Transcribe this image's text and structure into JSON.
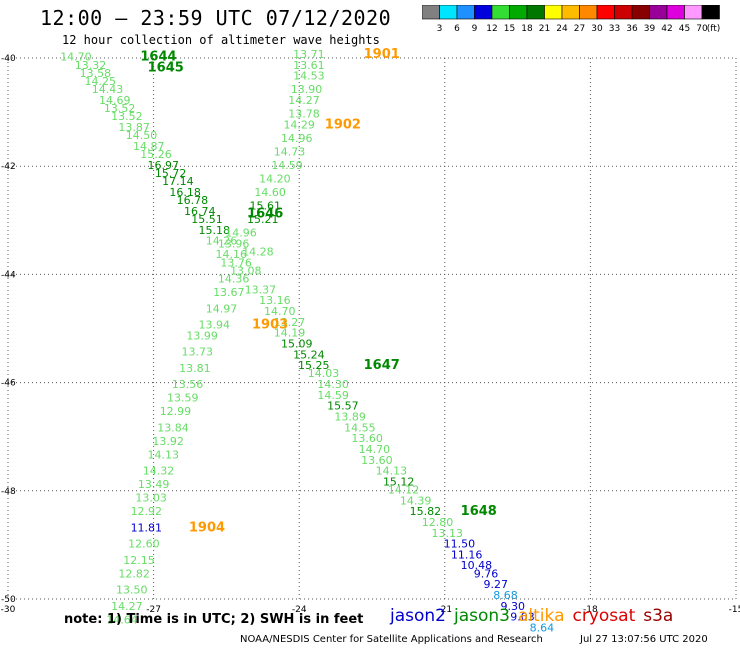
{
  "header": {
    "title": "12:00 – 23:59 UTC 07/12/2020",
    "subtitle": "12 hour collection of altimeter wave heights"
  },
  "legend": {
    "unit": "(ft)",
    "bins": [
      {
        "label": "3",
        "color": "#808080"
      },
      {
        "label": "6",
        "color": "#00e5ff"
      },
      {
        "label": "9",
        "color": "#1e90ff"
      },
      {
        "label": "12",
        "color": "#0000dd"
      },
      {
        "label": "15",
        "color": "#33dd33"
      },
      {
        "label": "18",
        "color": "#00aa00"
      },
      {
        "label": "21",
        "color": "#007700"
      },
      {
        "label": "24",
        "color": "#ffff00"
      },
      {
        "label": "27",
        "color": "#ffbb00"
      },
      {
        "label": "30",
        "color": "#ff8800"
      },
      {
        "label": "33",
        "color": "#ff0000"
      },
      {
        "label": "36",
        "color": "#cc0000"
      },
      {
        "label": "39",
        "color": "#880000"
      },
      {
        "label": "42",
        "color": "#990099"
      },
      {
        "label": "45",
        "color": "#dd00dd"
      },
      {
        "label": "70",
        "color": "#ff99ff"
      },
      {
        "label": "",
        "color": "#000000"
      }
    ]
  },
  "colors": {
    "light_green": "#66dd66",
    "dark_green": "#008800",
    "blue": "#0000cc",
    "light_blue": "#1199dd",
    "orange": "#ff9900",
    "red": "#dd0000",
    "dark_red": "#990000"
  },
  "chart_data": {
    "type": "scatter",
    "xlim": [
      -30,
      -15
    ],
    "ylim": [
      -50,
      -40
    ],
    "x_ticks": [
      "-30",
      "-27",
      "-24",
      "-21",
      "-18",
      "-15"
    ],
    "y_ticks": [
      "-40",
      "-42",
      "-44",
      "-46",
      "-48",
      "-50"
    ],
    "grid": true,
    "tracks": [
      {
        "satellite": "jason3",
        "points": [
          {
            "x": -28.6,
            "y": -40.05,
            "v": "14.70",
            "c": "light_green"
          },
          {
            "x": -28.3,
            "y": -40.2,
            "v": "13.32",
            "c": "light_green"
          },
          {
            "x": -28.2,
            "y": -40.35,
            "v": "13.58",
            "c": "light_green"
          },
          {
            "x": -28.1,
            "y": -40.5,
            "v": "14.25",
            "c": "light_green"
          },
          {
            "x": -27.95,
            "y": -40.65,
            "v": "14.43",
            "c": "light_green"
          },
          {
            "x": -27.8,
            "y": -40.85,
            "v": "14.69",
            "c": "light_green"
          },
          {
            "x": -27.7,
            "y": -41.0,
            "v": "13.52",
            "c": "light_green"
          },
          {
            "x": -27.55,
            "y": -41.15,
            "v": "13.52",
            "c": "light_green"
          },
          {
            "x": -27.4,
            "y": -41.35,
            "v": "13.87",
            "c": "light_green"
          },
          {
            "x": -27.25,
            "y": -41.5,
            "v": "14.50",
            "c": "light_green"
          },
          {
            "x": -27.1,
            "y": -41.7,
            "v": "14.87",
            "c": "light_green"
          },
          {
            "x": -26.95,
            "y": -41.85,
            "v": "15.26",
            "c": "light_green"
          },
          {
            "x": -26.8,
            "y": -42.05,
            "v": "16.97",
            "c": "dark_green"
          },
          {
            "x": -26.65,
            "y": -42.2,
            "v": "15.72",
            "c": "dark_green"
          },
          {
            "x": -26.5,
            "y": -42.35,
            "v": "17.14",
            "c": "dark_green"
          },
          {
            "x": -26.35,
            "y": -42.55,
            "v": "16.18",
            "c": "dark_green"
          },
          {
            "x": -26.2,
            "y": -42.7,
            "v": "16.78",
            "c": "dark_green"
          },
          {
            "x": -26.05,
            "y": -42.9,
            "v": "16.74",
            "c": "dark_green"
          },
          {
            "x": -25.9,
            "y": -43.05,
            "v": "15.51",
            "c": "dark_green"
          },
          {
            "x": -25.75,
            "y": -43.25,
            "v": "15.18",
            "c": "dark_green"
          },
          {
            "x": -25.6,
            "y": -43.45,
            "v": "14.26",
            "c": "light_green"
          },
          {
            "x": -25.4,
            "y": -43.7,
            "v": "14.16",
            "c": "light_green"
          },
          {
            "x": -25.3,
            "y": -43.85,
            "v": "13.76",
            "c": "light_green"
          },
          {
            "x": -25.1,
            "y": -44.0,
            "v": "13.08",
            "c": "light_green"
          },
          {
            "x": -24.8,
            "y": -44.35,
            "v": "13.37",
            "c": "light_green"
          },
          {
            "x": -24.5,
            "y": -44.55,
            "v": "13.16",
            "c": "light_green"
          },
          {
            "x": -24.4,
            "y": -44.75,
            "v": "14.70",
            "c": "light_green"
          },
          {
            "x": -24.2,
            "y": -44.95,
            "v": "13.27",
            "c": "light_green"
          },
          {
            "x": -24.2,
            "y": -45.15,
            "v": "14.19",
            "c": "light_green"
          },
          {
            "x": -24.05,
            "y": -45.35,
            "v": "15.09",
            "c": "dark_green"
          },
          {
            "x": -23.8,
            "y": -45.55,
            "v": "15.24",
            "c": "dark_green"
          },
          {
            "x": -23.7,
            "y": -45.75,
            "v": "15.25",
            "c": "dark_green"
          },
          {
            "x": -23.5,
            "y": -45.9,
            "v": "14.03",
            "c": "light_green"
          },
          {
            "x": -23.3,
            "y": -46.1,
            "v": "14.30",
            "c": "light_green"
          },
          {
            "x": -23.3,
            "y": -46.3,
            "v": "14.59",
            "c": "light_green"
          },
          {
            "x": -23.1,
            "y": -46.5,
            "v": "15.57",
            "c": "dark_green"
          },
          {
            "x": -22.95,
            "y": -46.7,
            "v": "13.89",
            "c": "light_green"
          },
          {
            "x": -22.75,
            "y": -46.9,
            "v": "14.55",
            "c": "light_green"
          },
          {
            "x": -22.6,
            "y": -47.1,
            "v": "13.60",
            "c": "light_green"
          },
          {
            "x": -22.45,
            "y": -47.3,
            "v": "14.70",
            "c": "light_green"
          },
          {
            "x": -22.4,
            "y": -47.5,
            "v": "13.60",
            "c": "light_green"
          },
          {
            "x": -22.1,
            "y": -47.7,
            "v": "14.13",
            "c": "light_green"
          },
          {
            "x": -21.95,
            "y": -47.9,
            "v": "15.12",
            "c": "dark_green"
          },
          {
            "x": -21.85,
            "y": -48.05,
            "v": "14.12",
            "c": "light_green"
          },
          {
            "x": -21.6,
            "y": -48.25,
            "v": "14.39",
            "c": "light_green"
          },
          {
            "x": -21.4,
            "y": -48.45,
            "v": "15.82",
            "c": "dark_green"
          },
          {
            "x": -21.15,
            "y": -48.65,
            "v": "12.80",
            "c": "light_green"
          },
          {
            "x": -20.95,
            "y": -48.85,
            "v": "13.13",
            "c": "light_green"
          },
          {
            "x": -20.7,
            "y": -49.05,
            "v": "11.50",
            "c": "blue"
          },
          {
            "x": -20.55,
            "y": -49.25,
            "v": "11.16",
            "c": "blue"
          },
          {
            "x": -20.35,
            "y": -49.45,
            "v": "10.48",
            "c": "blue"
          },
          {
            "x": -20.15,
            "y": -49.6,
            "v": "9.76",
            "c": "blue"
          },
          {
            "x": -19.95,
            "y": -49.8,
            "v": "9.27",
            "c": "blue"
          },
          {
            "x": -19.75,
            "y": -50.0,
            "v": "8.68",
            "c": "light_blue"
          },
          {
            "x": -19.6,
            "y": -50.2,
            "v": "9.30",
            "c": "blue"
          },
          {
            "x": -19.4,
            "y": -50.4,
            "v": "9.03",
            "c": "blue"
          },
          {
            "x": -19.0,
            "y": -50.6,
            "v": "8.64",
            "c": "light_blue"
          }
        ]
      },
      {
        "satellite": "jason3",
        "points": [
          {
            "x": -23.8,
            "y": -40.0,
            "v": "13.71",
            "c": "light_green"
          },
          {
            "x": -23.8,
            "y": -40.2,
            "v": "13.61",
            "c": "light_green"
          },
          {
            "x": -23.8,
            "y": -40.4,
            "v": "14.53",
            "c": "light_green"
          },
          {
            "x": -23.85,
            "y": -40.65,
            "v": "13.90",
            "c": "light_green"
          },
          {
            "x": -23.9,
            "y": -40.85,
            "v": "14.27",
            "c": "light_green"
          },
          {
            "x": -23.9,
            "y": -41.1,
            "v": "13.78",
            "c": "light_green"
          },
          {
            "x": -24.0,
            "y": -41.3,
            "v": "14.29",
            "c": "light_green"
          },
          {
            "x": -24.05,
            "y": -41.55,
            "v": "14.96",
            "c": "light_green"
          },
          {
            "x": -24.2,
            "y": -41.8,
            "v": "14.73",
            "c": "light_green"
          },
          {
            "x": -24.25,
            "y": -42.05,
            "v": "14.59",
            "c": "light_green"
          },
          {
            "x": -24.5,
            "y": -42.3,
            "v": "14.20",
            "c": "light_green"
          },
          {
            "x": -24.6,
            "y": -42.55,
            "v": "14.60",
            "c": "light_green"
          },
          {
            "x": -24.7,
            "y": -42.8,
            "v": "15.61",
            "c": "dark_green"
          },
          {
            "x": -24.75,
            "y": -43.05,
            "v": "15.21",
            "c": "dark_green"
          },
          {
            "x": -25.2,
            "y": -43.3,
            "v": "14.96",
            "c": "light_green"
          },
          {
            "x": -25.35,
            "y": -43.5,
            "v": "13.96",
            "c": "light_green"
          },
          {
            "x": -24.85,
            "y": -43.65,
            "v": "14.28",
            "c": "light_green"
          },
          {
            "x": -25.35,
            "y": -44.15,
            "v": "14.36",
            "c": "light_green"
          },
          {
            "x": -25.45,
            "y": -44.4,
            "v": "13.67",
            "c": "light_green"
          },
          {
            "x": -25.6,
            "y": -44.7,
            "v": "14.97",
            "c": "light_green"
          },
          {
            "x": -25.75,
            "y": -45.0,
            "v": "13.94",
            "c": "light_green"
          },
          {
            "x": -26.0,
            "y": -45.2,
            "v": "13.99",
            "c": "light_green"
          },
          {
            "x": -26.1,
            "y": -45.5,
            "v": "13.73",
            "c": "light_green"
          },
          {
            "x": -26.15,
            "y": -45.8,
            "v": "13.81",
            "c": "light_green"
          },
          {
            "x": -26.3,
            "y": -46.1,
            "v": "13.56",
            "c": "light_green"
          },
          {
            "x": -26.4,
            "y": -46.35,
            "v": "13.59",
            "c": "light_green"
          },
          {
            "x": -26.55,
            "y": -46.6,
            "v": "12.99",
            "c": "light_green"
          },
          {
            "x": -26.6,
            "y": -46.9,
            "v": "13.84",
            "c": "light_green"
          },
          {
            "x": -26.7,
            "y": -47.15,
            "v": "13.92",
            "c": "light_green"
          },
          {
            "x": -26.8,
            "y": -47.4,
            "v": "14.13",
            "c": "light_green"
          },
          {
            "x": -26.9,
            "y": -47.7,
            "v": "14.32",
            "c": "light_green"
          },
          {
            "x": -27.0,
            "y": -47.95,
            "v": "13.49",
            "c": "light_green"
          },
          {
            "x": -27.05,
            "y": -48.2,
            "v": "13.03",
            "c": "light_green"
          },
          {
            "x": -27.15,
            "y": -48.45,
            "v": "12.92",
            "c": "light_green"
          },
          {
            "x": -27.15,
            "y": -48.75,
            "v": "11.81",
            "c": "blue"
          },
          {
            "x": -27.2,
            "y": -49.05,
            "v": "12.60",
            "c": "light_green"
          },
          {
            "x": -27.3,
            "y": -49.35,
            "v": "12.15",
            "c": "light_green"
          },
          {
            "x": -27.4,
            "y": -49.6,
            "v": "12.82",
            "c": "light_green"
          },
          {
            "x": -27.45,
            "y": -49.9,
            "v": "13.50",
            "c": "light_green"
          },
          {
            "x": -27.55,
            "y": -50.2,
            "v": "14.27",
            "c": "light_green"
          },
          {
            "x": -27.65,
            "y": -50.45,
            "v": "14.64",
            "c": "light_green"
          }
        ]
      }
    ],
    "time_labels": [
      {
        "x": -26.9,
        "y": -40.05,
        "v": "1644",
        "c": "dark_green"
      },
      {
        "x": -26.75,
        "y": -40.25,
        "v": "1645",
        "c": "dark_green"
      },
      {
        "x": -24.7,
        "y": -42.95,
        "v": "1646",
        "c": "dark_green"
      },
      {
        "x": -22.3,
        "y": -45.75,
        "v": "1647",
        "c": "dark_green"
      },
      {
        "x": -20.3,
        "y": -48.45,
        "v": "1648",
        "c": "dark_green"
      },
      {
        "x": -22.3,
        "y": -40.0,
        "v": "1901",
        "c": "orange"
      },
      {
        "x": -23.1,
        "y": -41.3,
        "v": "1902",
        "c": "orange"
      },
      {
        "x": -24.6,
        "y": -45.0,
        "v": "1903",
        "c": "orange"
      },
      {
        "x": -25.9,
        "y": -48.75,
        "v": "1904",
        "c": "orange"
      }
    ]
  },
  "footer": {
    "note": "note:  1) Time is in UTC; 2) SWH is in feet",
    "satellites": [
      {
        "label": "jason2",
        "color": "#0000cc"
      },
      {
        "label": "jason3",
        "color": "#008800"
      },
      {
        "label": "altika",
        "color": "#ff9900"
      },
      {
        "label": "cryosat",
        "color": "#dd0000"
      },
      {
        "label": "s3a",
        "color": "#990000"
      }
    ],
    "credit": "NOAA/NESDIS Center for Satellite Applications and Research",
    "timestamp": "Jul 27 13:07:56 UTC 2020"
  }
}
